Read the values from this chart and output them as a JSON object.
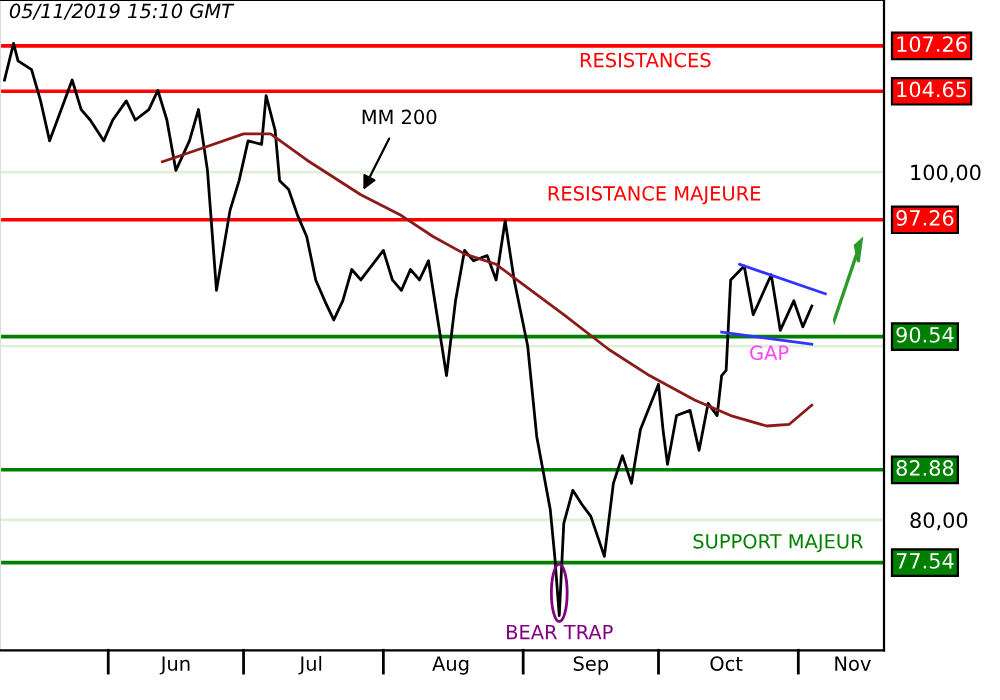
{
  "chart_data": {
    "type": "line",
    "annotations": [
      "05/11/2019 15:10 GMT",
      "RESISTANCES",
      "RESISTANCE MAJEURE",
      "SUPPORT MAJEUR",
      {
        "text": "MM 200",
        "x": "2019-07-27",
        "y": 98.7
      },
      "GAP",
      {
        "text": "BEAR TRAP",
        "x": "2019-09-09",
        "y": 74.5
      }
    ],
    "series": [
      {
        "color": "#000000",
        "x": [
          "2019-05-09",
          "2019-05-11",
          "2019-05-12",
          "2019-05-15",
          "2019-05-17",
          "2019-05-19",
          "2019-05-21",
          "2019-05-24",
          "2019-05-26",
          "2019-05-28",
          "2019-05-31",
          "2019-06-02",
          "2019-06-05",
          "2019-06-07",
          "2019-06-10",
          "2019-06-12",
          "2019-06-14",
          "2019-06-16",
          "2019-06-19",
          "2019-06-21",
          "2019-06-23",
          "2019-06-25",
          "2019-06-28",
          "2019-06-30",
          "2019-07-02",
          "2019-07-05",
          "2019-07-06",
          "2019-07-08",
          "2019-07-09",
          "2019-07-11",
          "2019-07-13",
          "2019-07-15",
          "2019-07-17",
          "2019-07-19",
          "2019-07-21",
          "2019-07-23",
          "2019-07-25",
          "2019-07-27",
          "2019-08-01",
          "2019-08-03",
          "2019-08-05",
          "2019-08-07",
          "2019-08-09",
          "2019-08-11",
          "2019-08-15",
          "2019-08-17",
          "2019-08-19",
          "2019-08-21",
          "2019-08-24",
          "2019-08-26",
          "2019-08-28",
          "2019-08-30",
          "2019-09-02",
          "2019-09-04",
          "2019-09-07",
          "2019-09-08",
          "2019-09-09",
          "2019-09-10",
          "2019-09-12",
          "2019-09-14",
          "2019-09-16",
          "2019-09-19",
          "2019-09-21",
          "2019-09-23",
          "2019-09-25",
          "2019-09-27",
          "2019-10-01",
          "2019-10-02",
          "2019-10-03",
          "2019-10-05",
          "2019-10-08",
          "2019-10-10",
          "2019-10-12",
          "2019-10-14",
          "2019-10-15",
          "2019-10-16",
          "2019-10-17",
          "2019-10-20",
          "2019-10-22",
          "2019-10-26",
          "2019-10-28",
          "2019-10-31",
          "2019-11-02",
          "2019-11-04"
        ],
        "values": [
          105.3,
          107.4,
          106.4,
          105.9,
          104.1,
          101.8,
          103.2,
          105.3,
          103.6,
          103.0,
          101.8,
          103.0,
          104.1,
          103.0,
          103.6,
          104.7,
          103.0,
          100.1,
          101.8,
          103.6,
          100.1,
          93.2,
          97.8,
          99.5,
          101.8,
          101.6,
          104.4,
          102.4,
          99.5,
          99.0,
          97.5,
          96.3,
          93.8,
          92.6,
          91.5,
          92.6,
          94.4,
          93.8,
          95.5,
          93.8,
          93.2,
          94.4,
          93.8,
          94.9,
          88.3,
          92.6,
          95.5,
          94.9,
          95.2,
          93.8,
          97.2,
          93.8,
          90.0,
          84.8,
          80.6,
          77.9,
          74.5,
          79.8,
          81.7,
          80.9,
          80.2,
          77.9,
          82.1,
          83.7,
          82.1,
          85.2,
          87.8,
          85.2,
          83.2,
          86.0,
          86.3,
          84.0,
          86.7,
          86.0,
          88.3,
          88.6,
          93.8,
          94.6,
          91.8,
          94.1,
          90.9,
          92.6,
          91.1,
          92.3
        ]
      },
      {
        "color": "#8b1a1a",
        "x": [
          "2019-06-13",
          "2019-06-21",
          "2019-07-01",
          "2019-07-07",
          "2019-07-15",
          "2019-07-27",
          "2019-08-05",
          "2019-08-12",
          "2019-08-19",
          "2019-08-26",
          "2019-09-10",
          "2019-09-20",
          "2019-09-29",
          "2019-10-09",
          "2019-10-17",
          "2019-10-25",
          "2019-10-30",
          "2019-11-04"
        ],
        "values": [
          100.6,
          101.3,
          102.2,
          102.2,
          100.7,
          98.7,
          97.5,
          96.3,
          95.3,
          94.7,
          91.8,
          89.8,
          88.3,
          86.9,
          86.0,
          85.4,
          85.5,
          86.6
        ]
      },
      {
        "color": "#3333ff",
        "x": [
          "2019-10-19",
          "2019-11-07"
        ],
        "values": [
          94.7,
          93.0
        ]
      },
      {
        "color": "#3333ff",
        "x": [
          "2019-10-15",
          "2019-11-04"
        ],
        "values": [
          90.8,
          90.1
        ]
      }
    ],
    "xlim": [
      "2019-05-08",
      "2019-11-20"
    ],
    "xticks": [
      {
        "value": "2019-06-16",
        "label": "Jun"
      },
      {
        "value": "2019-07-16",
        "label": "Jul"
      },
      {
        "value": "2019-08-16",
        "label": "Aug"
      },
      {
        "value": "2019-09-16",
        "label": "Sep"
      },
      {
        "value": "2019-10-16",
        "label": "Oct"
      },
      {
        "value": "2019-11-13",
        "label": "Nov"
      }
    ],
    "ylim": [
      72.5,
      109.9
    ],
    "yticks": [
      {
        "value": 80,
        "label": "80,00"
      },
      {
        "value": 90,
        "label": null
      },
      {
        "value": 100,
        "label": "100,00"
      }
    ],
    "grid": "y",
    "ref_lines": [
      {
        "axis": "y",
        "value": 107.26,
        "label": "107.26",
        "color": "#ff0000"
      },
      {
        "axis": "y",
        "value": 104.65,
        "label": "104.65",
        "color": "#ff0000"
      },
      {
        "axis": "y",
        "value": 97.26,
        "label": "97.26",
        "color": "#ff0000"
      },
      {
        "axis": "y",
        "value": 90.54,
        "label": "90.54",
        "color": "#008000"
      },
      {
        "axis": "y",
        "value": 82.88,
        "label": "82.88",
        "color": "#008000"
      },
      {
        "axis": "y",
        "value": 77.54,
        "label": "77.54",
        "color": "#008000"
      }
    ]
  }
}
